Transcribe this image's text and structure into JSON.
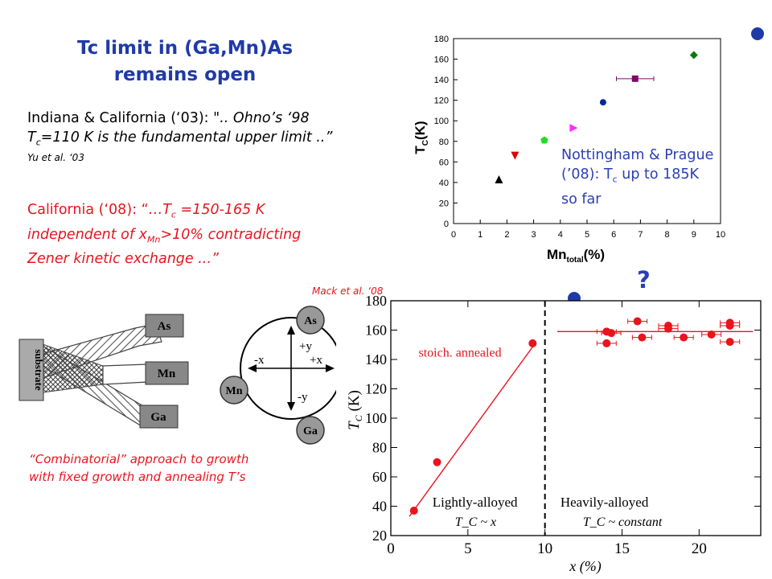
{
  "title": {
    "line1": "Tc limit in (Ga,Mn)As",
    "line2": "remains open"
  },
  "quote1": {
    "prefix": "Indiana & California (‘03):  \"",
    "italic_a": ".. Ohno’s ‘98 ",
    "tc": "T",
    "tc_sub": "c",
    "italic_b": "=110 K is the fundamental upper limit  ..”",
    "ref": "Yu et al. ‘03"
  },
  "quote2": {
    "prefix": "California (‘08): “",
    "it_a": "…T",
    "it_a_sub": "c",
    "it_b": " =150-165 K",
    "line2_a": "independent of x",
    "line2_sub": "Mn",
    "line2_b": ">10% contradicting",
    "line3": "Zener kinetic exchange ...”"
  },
  "nottingham": {
    "line1": "Nottingham & Prague",
    "line2_a": "(’08): T",
    "line2_sub": "c",
    "line2_b": " up to 185K",
    "line3": "so far"
  },
  "combinatorial": {
    "line1": "“Combinatorial” approach to growth",
    "line2": "with fixed growth and annealing T’s"
  },
  "mack_ref": "Mack et al. ‘08",
  "question_mark": "?",
  "diagram": {
    "substrate": "substrate",
    "arms": [
      "As",
      "Mn",
      "Ga"
    ],
    "circle_labels": {
      "as": "As",
      "mn": "Mn",
      "ga": "Ga",
      "plus_y": "+y",
      "minus_y": "-y",
      "minus_x": "-x",
      "plus_x": "+x"
    }
  },
  "colors": {
    "title": "#1f3aa8",
    "red": "#e8141e",
    "blue_text": "#2a3fb5"
  },
  "chart_data": [
    {
      "type": "scatter",
      "title": "",
      "xlabel": "Mn",
      "xlabel_sub": "total",
      "xlabel_suffix": "(%)",
      "ylabel": "T",
      "ylabel_sub": "C",
      "ylabel_suffix": "(K)",
      "xlim": [
        0,
        10
      ],
      "ylim": [
        0,
        180
      ],
      "x_ticks": [
        0,
        1,
        2,
        3,
        4,
        5,
        6,
        7,
        8,
        9,
        10
      ],
      "y_ticks": [
        0,
        20,
        40,
        60,
        80,
        100,
        120,
        140,
        160,
        180
      ],
      "grid": false,
      "points": [
        {
          "x": 1.7,
          "y": 43,
          "marker": "triangle-up",
          "color": "#000000"
        },
        {
          "x": 2.3,
          "y": 66,
          "marker": "triangle-down",
          "color": "#e00000"
        },
        {
          "x": 3.4,
          "y": 81,
          "marker": "pentagon",
          "color": "#22dd22"
        },
        {
          "x": 4.5,
          "y": 93,
          "marker": "triangle-right",
          "color": "#ff2bff"
        },
        {
          "x": 5.6,
          "y": 118,
          "marker": "circle",
          "color": "#002a9a"
        },
        {
          "x": 6.8,
          "y": 141,
          "marker": "square",
          "color": "#7a0a6a",
          "xerr": 0.7
        },
        {
          "x": 9.0,
          "y": 164,
          "marker": "diamond",
          "color": "#0a7a0a"
        }
      ]
    },
    {
      "type": "scatter",
      "title": "",
      "xlabel": "x (%)",
      "ylabel": "T",
      "ylabel_sub": "C",
      "ylabel_suffix": " (K)",
      "xlim": [
        0,
        24
      ],
      "ylim": [
        20,
        180
      ],
      "x_ticks": [
        0,
        5,
        10,
        15,
        20
      ],
      "y_ticks": [
        20,
        40,
        60,
        80,
        100,
        120,
        140,
        160,
        180
      ],
      "divider_x": 10,
      "legend": "stoich. annealed",
      "regions": [
        {
          "label": "Lightly-alloyed",
          "formula": "T_C ~ x"
        },
        {
          "label": "Heavily-alloyed",
          "formula": "T_C ~ constant"
        }
      ],
      "series": [
        {
          "values": [
            {
              "x": 1.5,
              "y": 37
            },
            {
              "x": 3.0,
              "y": 70
            },
            {
              "x": 9.2,
              "y": 151
            },
            {
              "x": 14.0,
              "y": 159
            },
            {
              "x": 14.3,
              "y": 158
            },
            {
              "x": 14.0,
              "y": 151
            },
            {
              "x": 16.0,
              "y": 166
            },
            {
              "x": 16.3,
              "y": 155
            },
            {
              "x": 18.0,
              "y": 163
            },
            {
              "x": 18.0,
              "y": 161
            },
            {
              "x": 19.0,
              "y": 155
            },
            {
              "x": 20.8,
              "y": 157
            },
            {
              "x": 22.0,
              "y": 165
            },
            {
              "x": 22.0,
              "y": 163
            },
            {
              "x": 22.0,
              "y": 152
            }
          ]
        }
      ],
      "fits": [
        {
          "from": [
            1.2,
            33
          ],
          "to": [
            9.3,
            150
          ]
        },
        {
          "from": [
            10.8,
            159
          ],
          "to": [
            23.5,
            159
          ]
        }
      ]
    }
  ]
}
